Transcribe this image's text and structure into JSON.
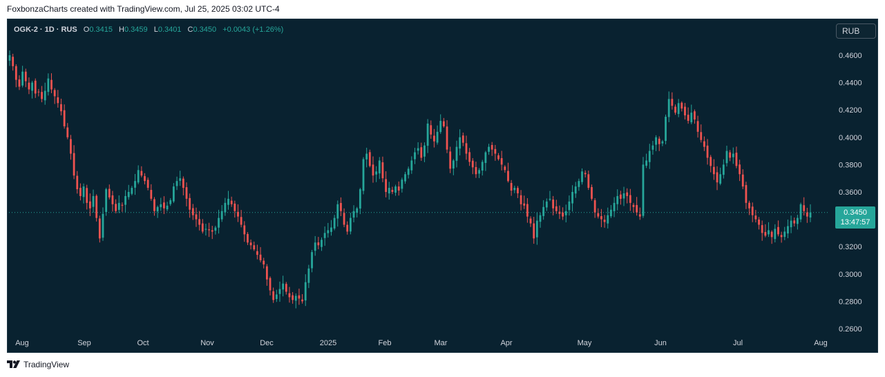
{
  "caption": "FoxbonzaCharts created with TradingView.com, Jul 25, 2025 03:02 UTC-4",
  "legend": {
    "symbol": "OGK-2 · 1D · RUS",
    "open_label": "O",
    "open": "0.3415",
    "high_label": "H",
    "high": "0.3459",
    "low_label": "L",
    "low": "0.3401",
    "close_label": "C",
    "close": "0.3450",
    "change": "+0.0043 (+1.26%)"
  },
  "currency": "RUB",
  "price_badge": {
    "price": "0.3450",
    "countdown": "13:47:57"
  },
  "footer": {
    "brand": "TradingView",
    "logo_icon": "tradingview-logo-icon"
  },
  "colors": {
    "background": "#092230",
    "up": "#26a69a",
    "down": "#ef5350",
    "axis_text": "#d1d4dc"
  },
  "chart_data": {
    "type": "candlestick",
    "x_labels": [
      "Aug",
      "Sep",
      "Oct",
      "Nov",
      "Dec",
      "2025",
      "Feb",
      "Mar",
      "Apr",
      "May",
      "Jun",
      "Jul",
      "Aug"
    ],
    "y_ticks": [
      "0.4600",
      "0.4400",
      "0.4200",
      "0.4000",
      "0.3800",
      "0.3600",
      "0.3400",
      "0.3200",
      "0.3000",
      "0.2800",
      "0.2600"
    ],
    "ylim": [
      0.256,
      0.476
    ],
    "last_price": 0.345,
    "grid": false,
    "closes": [
      0.46,
      0.452,
      0.442,
      0.437,
      0.448,
      0.441,
      0.435,
      0.44,
      0.432,
      0.433,
      0.428,
      0.434,
      0.443,
      0.435,
      0.43,
      0.425,
      0.419,
      0.408,
      0.4,
      0.388,
      0.372,
      0.362,
      0.357,
      0.364,
      0.352,
      0.348,
      0.357,
      0.341,
      0.326,
      0.344,
      0.362,
      0.356,
      0.351,
      0.346,
      0.352,
      0.35,
      0.357,
      0.36,
      0.363,
      0.368,
      0.376,
      0.372,
      0.368,
      0.363,
      0.355,
      0.346,
      0.349,
      0.351,
      0.348,
      0.35,
      0.354,
      0.364,
      0.368,
      0.37,
      0.363,
      0.355,
      0.347,
      0.343,
      0.34,
      0.336,
      0.331,
      0.333,
      0.332,
      0.331,
      0.334,
      0.341,
      0.346,
      0.352,
      0.355,
      0.351,
      0.346,
      0.342,
      0.336,
      0.329,
      0.323,
      0.321,
      0.318,
      0.314,
      0.31,
      0.307,
      0.296,
      0.288,
      0.281,
      0.285,
      0.289,
      0.293,
      0.287,
      0.283,
      0.281,
      0.284,
      0.282,
      0.28,
      0.294,
      0.304,
      0.316,
      0.323,
      0.321,
      0.325,
      0.33,
      0.332,
      0.334,
      0.341,
      0.351,
      0.346,
      0.336,
      0.331,
      0.341,
      0.346,
      0.348,
      0.362,
      0.384,
      0.388,
      0.379,
      0.372,
      0.375,
      0.383,
      0.37,
      0.36,
      0.363,
      0.36,
      0.364,
      0.361,
      0.369,
      0.373,
      0.377,
      0.383,
      0.389,
      0.392,
      0.385,
      0.394,
      0.41,
      0.402,
      0.397,
      0.404,
      0.412,
      0.408,
      0.391,
      0.377,
      0.383,
      0.393,
      0.4,
      0.396,
      0.388,
      0.382,
      0.378,
      0.373,
      0.376,
      0.382,
      0.389,
      0.393,
      0.391,
      0.388,
      0.384,
      0.38,
      0.376,
      0.368,
      0.361,
      0.363,
      0.359,
      0.351,
      0.35,
      0.342,
      0.337,
      0.326,
      0.339,
      0.343,
      0.349,
      0.353,
      0.355,
      0.348,
      0.346,
      0.344,
      0.342,
      0.346,
      0.353,
      0.36,
      0.364,
      0.368,
      0.375,
      0.373,
      0.363,
      0.355,
      0.345,
      0.342,
      0.34,
      0.338,
      0.343,
      0.347,
      0.352,
      0.357,
      0.355,
      0.359,
      0.357,
      0.352,
      0.349,
      0.345,
      0.342,
      0.38,
      0.383,
      0.39,
      0.394,
      0.4,
      0.395,
      0.397,
      0.415,
      0.428,
      0.423,
      0.418,
      0.425,
      0.421,
      0.416,
      0.412,
      0.418,
      0.413,
      0.404,
      0.398,
      0.393,
      0.385,
      0.379,
      0.373,
      0.367,
      0.373,
      0.38,
      0.39,
      0.385,
      0.388,
      0.379,
      0.373,
      0.364,
      0.352,
      0.348,
      0.343,
      0.34,
      0.336,
      0.33,
      0.328,
      0.332,
      0.327,
      0.333,
      0.329,
      0.327,
      0.331,
      0.335,
      0.339,
      0.337,
      0.341,
      0.351,
      0.346,
      0.342,
      0.345
    ]
  }
}
